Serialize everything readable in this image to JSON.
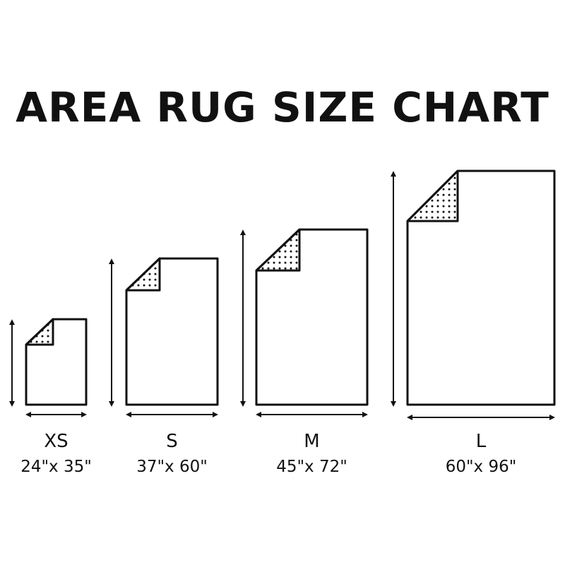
{
  "title": "AREA RUG SIZE CHART",
  "rugs": [
    {
      "size": "XS",
      "dimensions": "24\"x 35\"",
      "width_in": 24,
      "length_in": 35
    },
    {
      "size": "S",
      "dimensions": "37\"x 60\"",
      "width_in": 37,
      "length_in": 60
    },
    {
      "size": "M",
      "dimensions": "45\"x 72\"",
      "width_in": 45,
      "length_in": 72
    },
    {
      "size": "L",
      "dimensions": "60\"x 96\"",
      "width_in": 60,
      "length_in": 96
    }
  ],
  "colors": {
    "line": "#111111",
    "background": "#ffffff"
  }
}
